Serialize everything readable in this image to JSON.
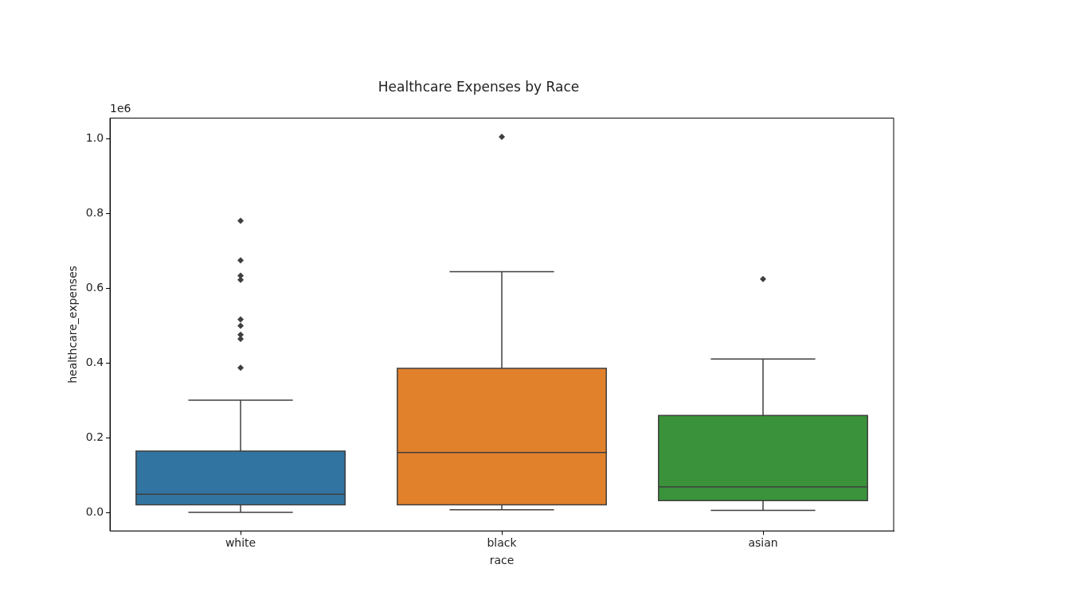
{
  "chart_data": {
    "type": "box",
    "title": "Healthcare Expenses by Race",
    "xlabel": "race",
    "ylabel": "healthcare_expenses",
    "categories": [
      "white",
      "black",
      "asian"
    ],
    "colors": [
      "#3274a1",
      "#e1812c",
      "#3a923a"
    ],
    "boxes": [
      {
        "low": 0.001,
        "q1": 0.021,
        "median": 0.049,
        "q3": 0.165,
        "high": 0.301,
        "outliers": [
          0.781,
          0.675,
          0.634,
          0.623,
          0.517,
          0.5,
          0.476,
          0.465,
          0.388
        ]
      },
      {
        "low": 0.008,
        "q1": 0.021,
        "median": 0.161,
        "q3": 0.386,
        "high": 0.645,
        "outliers": [
          1.006
        ]
      },
      {
        "low": 0.006,
        "q1": 0.032,
        "median": 0.069,
        "q3": 0.26,
        "high": 0.411,
        "outliers": [
          0.625
        ]
      }
    ],
    "ylim": [
      -0.049,
      1.056
    ],
    "yticks": [
      {
        "value": 0,
        "label": "0.0"
      },
      {
        "value": 0.2,
        "label": "0.2"
      },
      {
        "value": 0.4,
        "label": "0.4"
      },
      {
        "value": 0.6,
        "label": "0.6"
      },
      {
        "value": 0.8,
        "label": "0.8"
      },
      {
        "value": 1,
        "label": "1.0"
      }
    ],
    "grid": false,
    "legend": false,
    "marker": "diamond",
    "annotations": [
      "1e6"
    ]
  }
}
